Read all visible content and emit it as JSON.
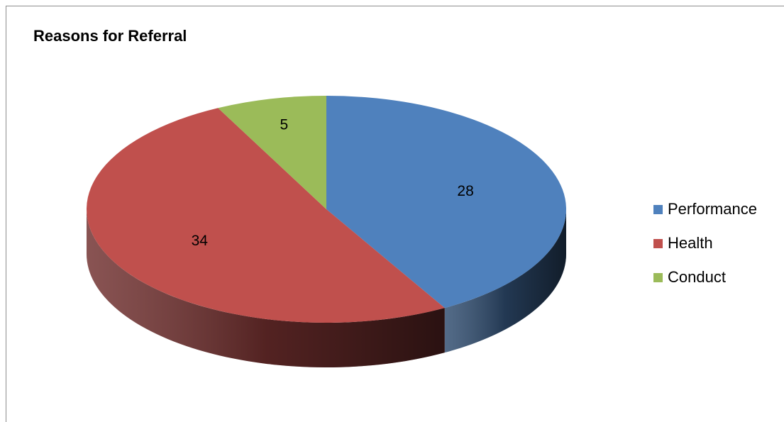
{
  "chart_data": {
    "type": "pie",
    "title": "Reasons for Referral",
    "slices": [
      {
        "label": "Performance",
        "value": 28,
        "color": "#4F81BD"
      },
      {
        "label": "Health",
        "value": 34,
        "color": "#C0504D"
      },
      {
        "label": "Conduct",
        "value": 5,
        "color": "#9BBB59"
      }
    ],
    "legend_position": "right",
    "style": "3d"
  }
}
